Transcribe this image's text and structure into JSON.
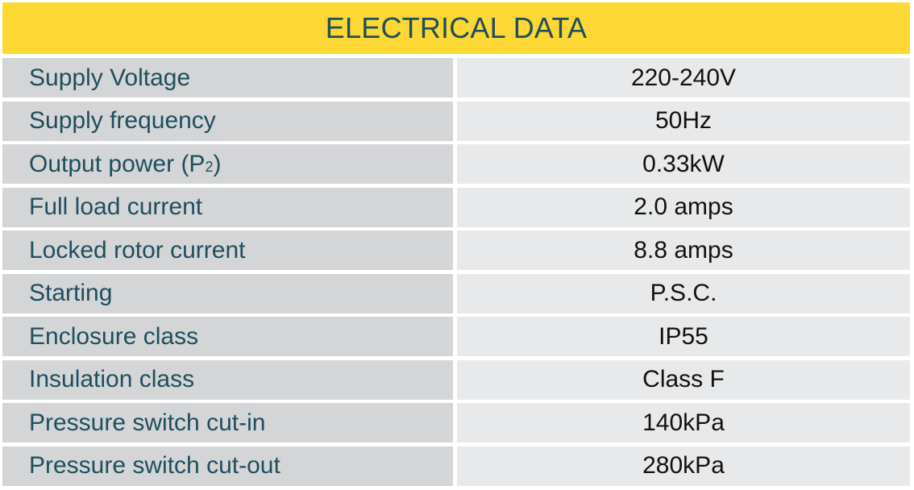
{
  "table": {
    "title": "ELECTRICAL DATA",
    "rows": [
      {
        "label": "Supply Voltage",
        "value": "220-240V"
      },
      {
        "label": "Supply frequency",
        "value": "50Hz"
      },
      {
        "label": "Output power (P",
        "label_sub": "2",
        "label_suffix": ")",
        "value": "0.33kW"
      },
      {
        "label": "Full load current",
        "value": "2.0 amps"
      },
      {
        "label": "Locked rotor current",
        "value": "8.8 amps"
      },
      {
        "label": "Starting",
        "value": "P.S.C."
      },
      {
        "label": "Enclosure class",
        "value": "IP55"
      },
      {
        "label": "Insulation class",
        "value": "Class F"
      },
      {
        "label": "Pressure switch cut-in",
        "value": "140kPa"
      },
      {
        "label": "Pressure switch cut-out",
        "value": "280kPa"
      }
    ]
  },
  "colors": {
    "header_bg": "#fdd835",
    "label_bg": "#d4d5d7",
    "value_bg": "#e8e9ea",
    "label_text": "#1f4e5e"
  }
}
